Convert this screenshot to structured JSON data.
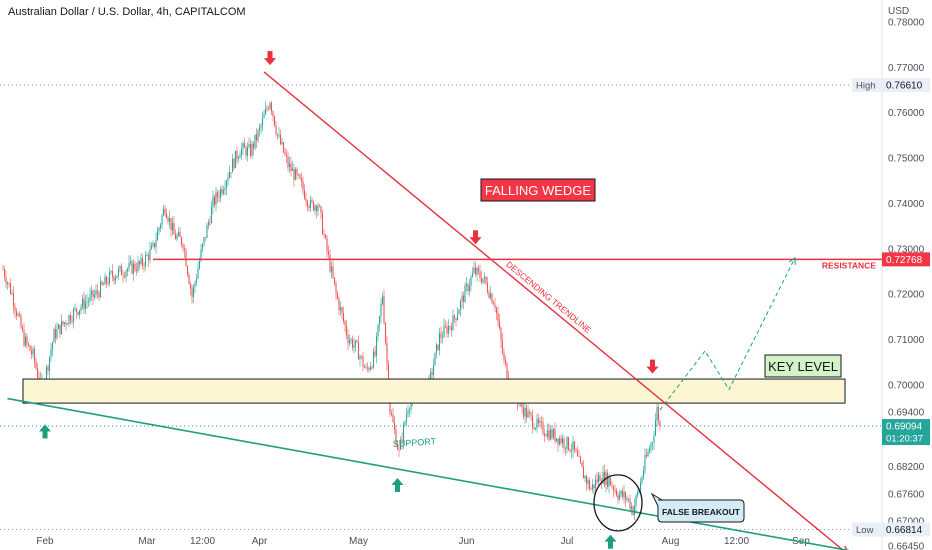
{
  "header": {
    "title": "Australian Dollar / U.S. Dollar, 4h, CAPITALCOM"
  },
  "colors": {
    "bull": "#26a69a",
    "bear": "#ef5350",
    "trend_red": "#e8303e",
    "support_green": "#1e9e7e",
    "key_fill": "#fdf6d3",
    "price_tag": "#26a69a",
    "resistance_tag": "#f23645",
    "gray_text": "#4a4f5a"
  },
  "chart_data": {
    "type": "candlestick",
    "title": "Australian Dollar / U.S. Dollar, 4h, CAPITALCOM",
    "currency_label": "USD",
    "ylim": [
      0.6645,
      0.78
    ],
    "y_ticks": [
      "0.78000",
      "0.77000",
      "0.76000",
      "0.75000",
      "0.74000",
      "0.73000",
      "0.72000",
      "0.71000",
      "0.70000",
      "0.69400",
      "0.68200",
      "0.67600",
      "0.67000",
      "0.66450"
    ],
    "y_tick_values": [
      0.78,
      0.77,
      0.76,
      0.75,
      0.74,
      0.73,
      0.72,
      0.71,
      0.7,
      0.694,
      0.682,
      0.676,
      0.67,
      0.6645
    ],
    "x_ticks": [
      "Feb",
      "Mar",
      "12:00",
      "Apr",
      "May",
      "Jun",
      "Jul",
      "Aug",
      "12:00",
      "Sep"
    ],
    "x_tick_index": [
      28,
      96,
      133,
      171,
      237,
      309,
      376,
      445,
      489,
      532
    ],
    "last_index": 438,
    "price_path": [
      [
        0,
        0.7255
      ],
      [
        6,
        0.72
      ],
      [
        14,
        0.71
      ],
      [
        20,
        0.7065
      ],
      [
        26,
        0.6985
      ],
      [
        34,
        0.711
      ],
      [
        44,
        0.715
      ],
      [
        54,
        0.718
      ],
      [
        62,
        0.72
      ],
      [
        72,
        0.724
      ],
      [
        82,
        0.7255
      ],
      [
        92,
        0.7265
      ],
      [
        100,
        0.73
      ],
      [
        108,
        0.7395
      ],
      [
        114,
        0.733
      ],
      [
        120,
        0.7315
      ],
      [
        126,
        0.7195
      ],
      [
        132,
        0.729
      ],
      [
        140,
        0.74
      ],
      [
        146,
        0.7435
      ],
      [
        152,
        0.748
      ],
      [
        158,
        0.752
      ],
      [
        165,
        0.7515
      ],
      [
        171,
        0.756
      ],
      [
        178,
        0.763
      ],
      [
        183,
        0.755
      ],
      [
        190,
        0.7485
      ],
      [
        198,
        0.7445
      ],
      [
        205,
        0.7395
      ],
      [
        210,
        0.74
      ],
      [
        215,
        0.731
      ],
      [
        222,
        0.72
      ],
      [
        230,
        0.7105
      ],
      [
        236,
        0.708
      ],
      [
        242,
        0.703
      ],
      [
        248,
        0.7065
      ],
      [
        253,
        0.72
      ],
      [
        258,
        0.6945
      ],
      [
        264,
        0.685
      ],
      [
        270,
        0.6955
      ],
      [
        276,
        0.6995
      ],
      [
        283,
        0.6985
      ],
      [
        291,
        0.7105
      ],
      [
        300,
        0.714
      ],
      [
        307,
        0.7195
      ],
      [
        314,
        0.725
      ],
      [
        320,
        0.7235
      ],
      [
        328,
        0.718
      ],
      [
        334,
        0.705
      ],
      [
        341,
        0.698
      ],
      [
        348,
        0.694
      ],
      [
        356,
        0.691
      ],
      [
        364,
        0.6895
      ],
      [
        372,
        0.688
      ],
      [
        380,
        0.686
      ],
      [
        386,
        0.681
      ],
      [
        392,
        0.677
      ],
      [
        398,
        0.68
      ],
      [
        404,
        0.679
      ],
      [
        410,
        0.676
      ],
      [
        416,
        0.675
      ],
      [
        420,
        0.6725
      ],
      [
        424,
        0.677
      ],
      [
        428,
        0.683
      ],
      [
        433,
        0.688
      ],
      [
        436,
        0.6945
      ],
      [
        438,
        0.69094
      ]
    ],
    "high": {
      "label": "High",
      "value": "0.76610",
      "v": 0.7661
    },
    "low": {
      "label": "Low",
      "value": "0.66814",
      "v": 0.66814
    },
    "last_price": {
      "value": "0.69094",
      "v": 0.69094,
      "countdown": "01:20:37"
    },
    "resistance": {
      "label": "RESISTANCE",
      "value": "0.72768",
      "v": 0.72768,
      "from_index": 100
    },
    "key_level": {
      "label": "KEY LEVEL",
      "top": 0.7013,
      "bottom": 0.696
    },
    "descending_trendline": {
      "label": "DESCENDING TRENDLINE",
      "from": [
        174,
        0.769
      ],
      "to": [
        564,
        0.6625
      ]
    },
    "support_line": {
      "label": "SUPPORT",
      "from": [
        3,
        0.697
      ],
      "to": [
        564,
        0.6635
      ]
    },
    "projection": [
      [
        438,
        0.6945
      ],
      [
        468,
        0.7075
      ],
      [
        484,
        0.699
      ],
      [
        528,
        0.728
      ]
    ],
    "annotations": {
      "falling_wedge": "FALLING WEDGE",
      "false_breakout": "FALSE BREAKOUT"
    },
    "arrows_down": [
      [
        178,
        0.7705
      ],
      [
        315,
        0.731
      ],
      [
        433,
        0.7025
      ]
    ],
    "arrows_up": [
      [
        28,
        0.6913
      ],
      [
        263,
        0.6795
      ],
      [
        405,
        0.667
      ]
    ],
    "false_breakout_circle": [
      410,
      0.674
    ]
  }
}
